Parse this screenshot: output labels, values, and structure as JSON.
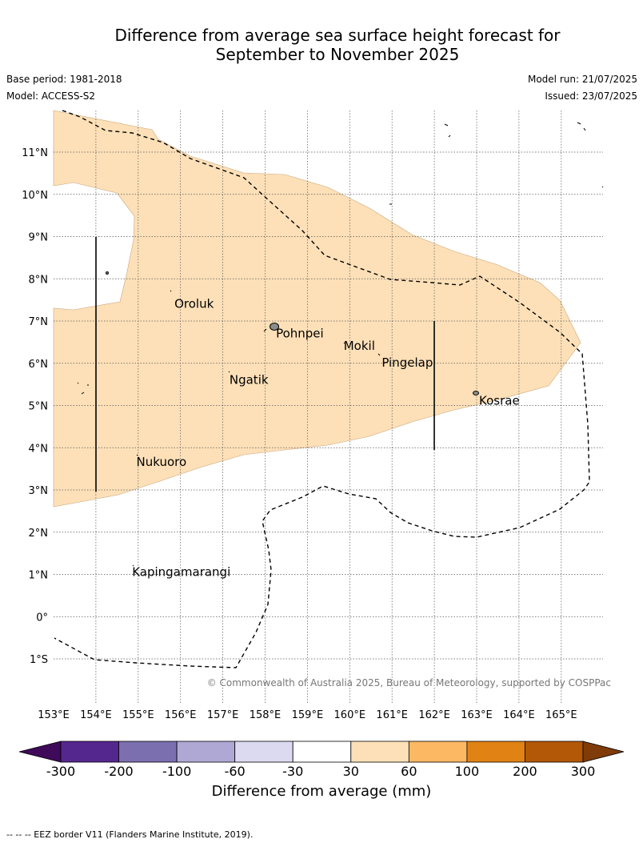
{
  "title_line1": "Difference from average sea surface height forecast for",
  "title_line2": "September to November 2025",
  "base_period": "Base period: 1981-2018",
  "model": "Model: ACCESS-S2",
  "model_run": "Model run: 21/07/2025",
  "issued": "Issued: 23/07/2025",
  "lon_ticks": [
    "153°E",
    "154°E",
    "155°E",
    "156°E",
    "157°E",
    "158°E",
    "159°E",
    "160°E",
    "161°E",
    "162°E",
    "163°E",
    "164°E",
    "165°E"
  ],
  "lat_ticks": [
    "11°N",
    "10°N",
    "9°N",
    "8°N",
    "7°N",
    "6°N",
    "5°N",
    "4°N",
    "3°N",
    "2°N",
    "1°N",
    "0°",
    "1°S"
  ],
  "places": [
    {
      "name": "Oroluk",
      "lon": 155.8,
      "lat": 7.6
    },
    {
      "name": "Pohnpei",
      "lon": 158.2,
      "lat": 6.9
    },
    {
      "name": "Mokil",
      "lon": 159.8,
      "lat": 6.6
    },
    {
      "name": "Pingelap",
      "lon": 160.7,
      "lat": 6.2
    },
    {
      "name": "Ngatik",
      "lon": 157.1,
      "lat": 5.8
    },
    {
      "name": "Kosrae",
      "lon": 163.0,
      "lat": 5.3
    },
    {
      "name": "Nukuoro",
      "lon": 154.9,
      "lat": 3.85
    },
    {
      "name": "Kapingamarangi",
      "lon": 154.8,
      "lat": 1.25
    }
  ],
  "copyright": "© Commonwealth of Australia 2025, Bureau of Meteorology, supported by COSPPac",
  "colorbar": {
    "title": "Difference from average (mm)",
    "ticks": [
      "-300",
      "-200",
      "-100",
      "-60",
      "-30",
      "30",
      "60",
      "100",
      "200",
      "300"
    ],
    "colors": [
      "#3f0a5a",
      "#54278f",
      "#7c6fb0",
      "#b0a8d4",
      "#dcdaf0",
      "#ffffff",
      "#fde0b8",
      "#fdb863",
      "#e08214",
      "#b35806",
      "#7f3b08"
    ]
  },
  "forecast_bin_color": "#fde0b8",
  "footnote": "--  --  -- EEZ border V11 (Flanders Marine Institute, 2019)."
}
